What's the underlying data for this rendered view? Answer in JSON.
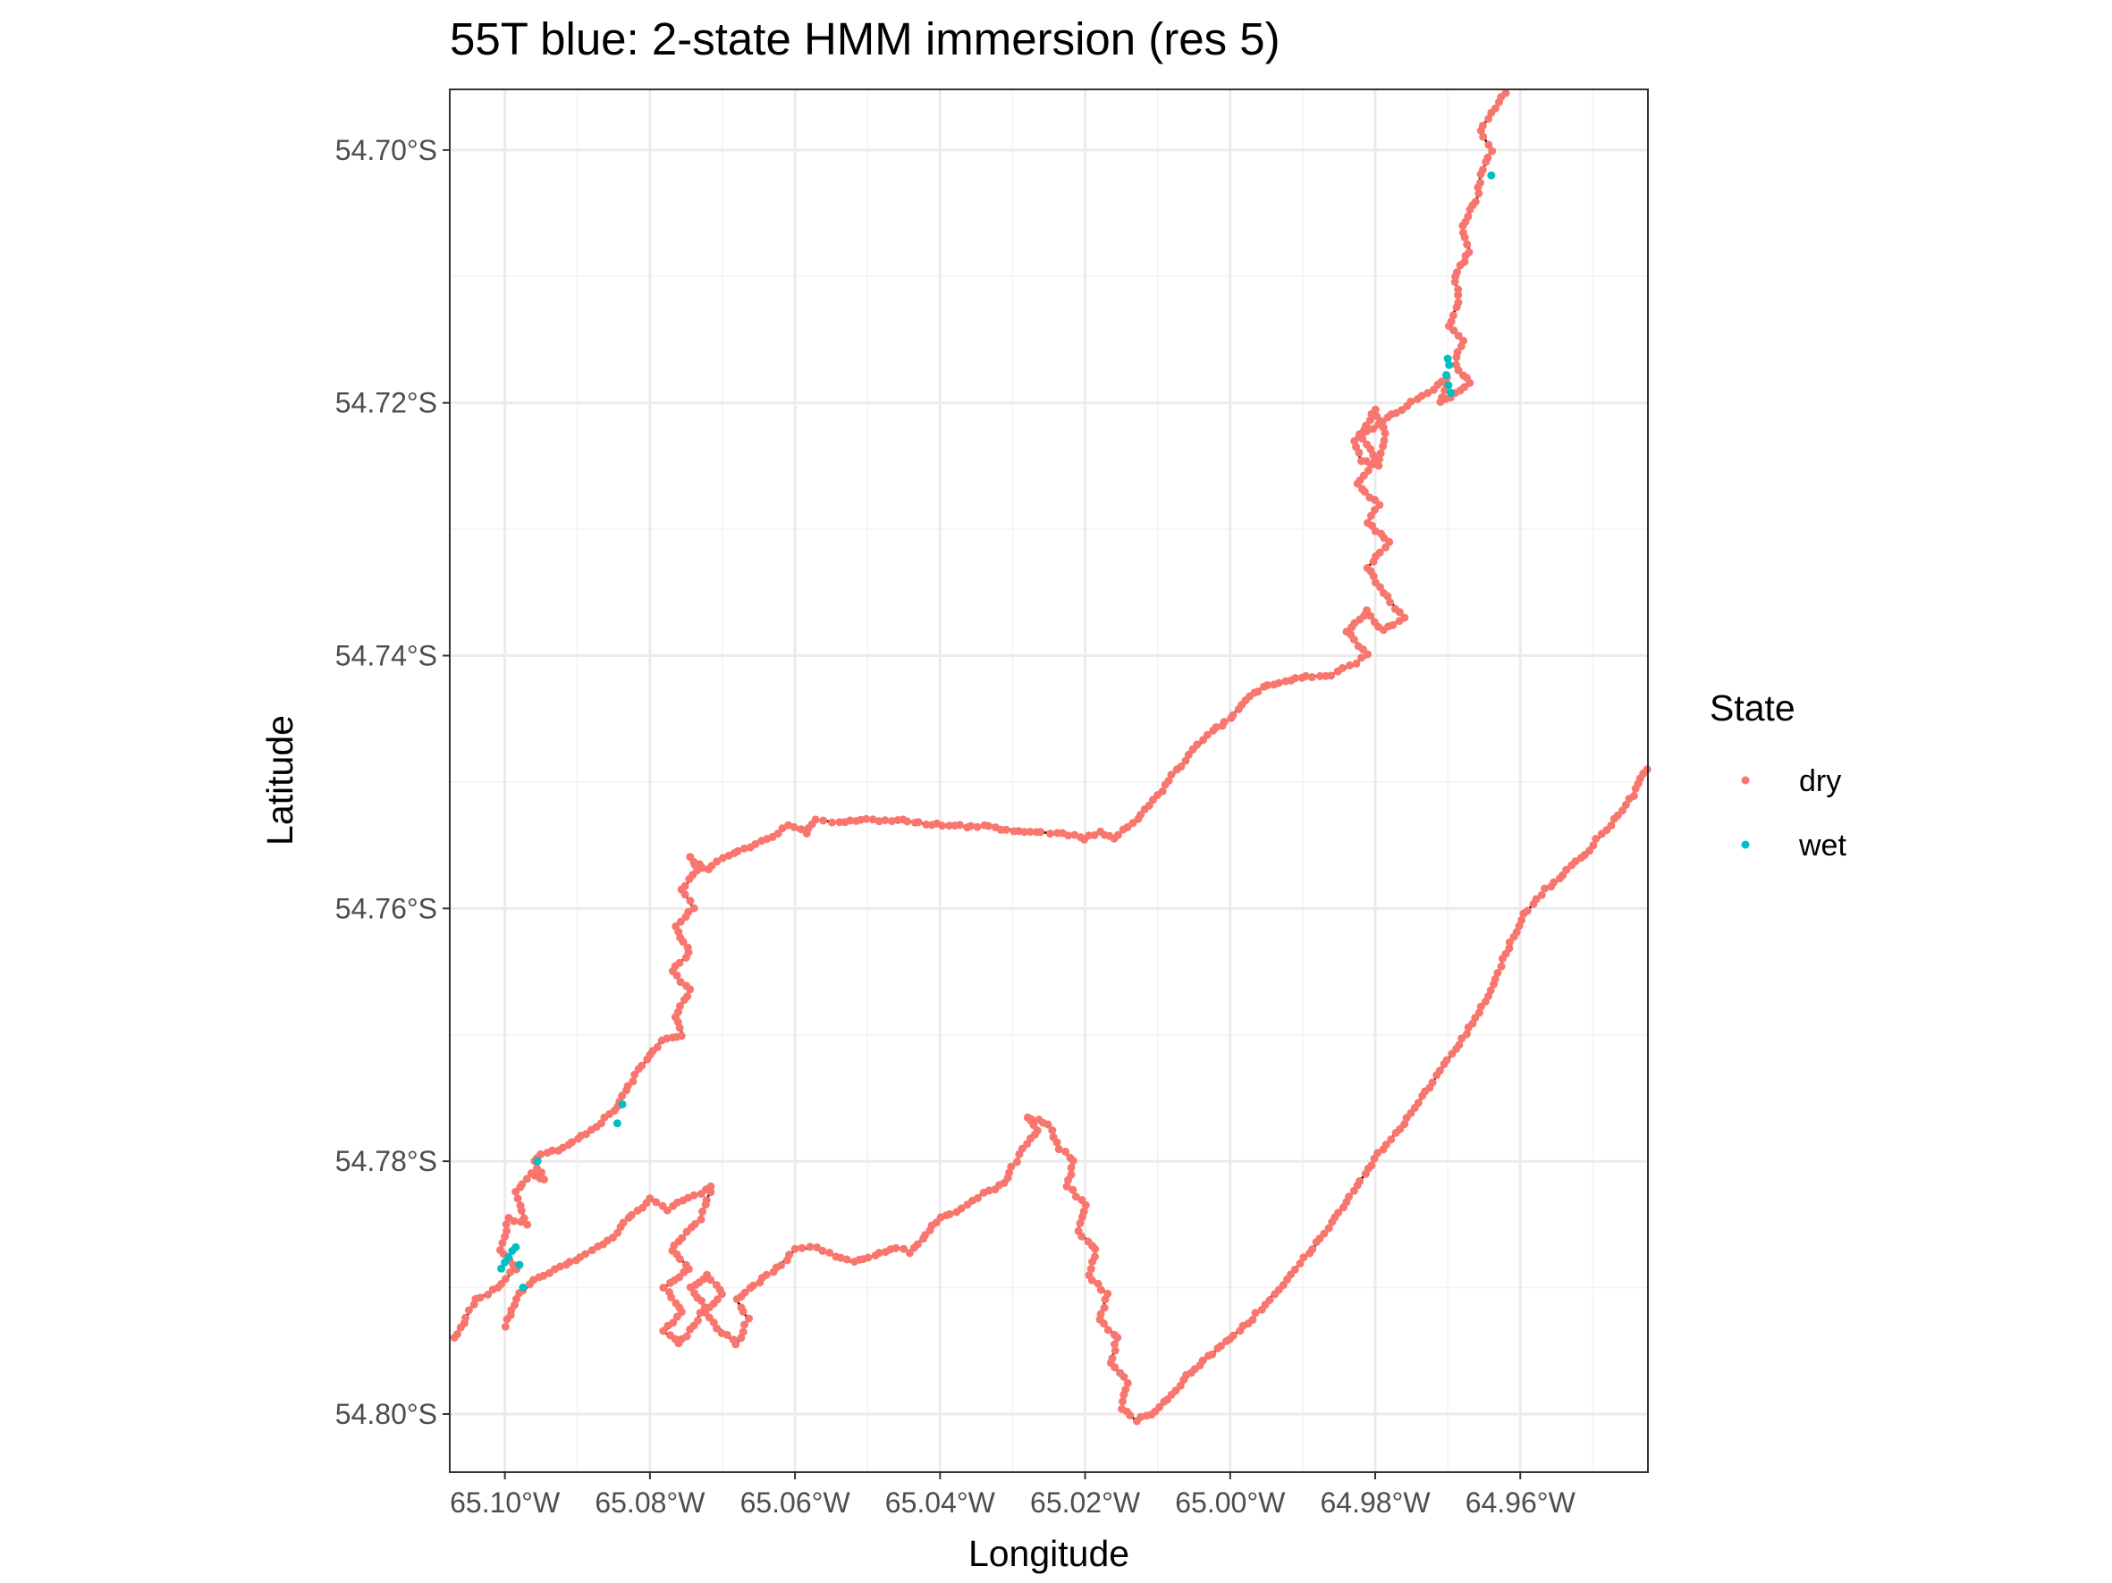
{
  "chart_data": {
    "type": "scatter",
    "title": "55T blue: 2-state HMM immersion (res 5)",
    "xlabel": "Longitude",
    "ylabel": "Latitude",
    "xlim": [
      -65.1076,
      -64.9424
    ],
    "ylim": [
      -54.8046,
      -54.6952
    ],
    "x_ticks": [
      -65.1,
      -65.08,
      -65.06,
      -65.04,
      -65.02,
      -65.0,
      -64.98,
      -64.96
    ],
    "x_tick_labels": [
      "65.10°W",
      "65.08°W",
      "65.06°W",
      "65.04°W",
      "65.02°W",
      "65.00°W",
      "64.98°W",
      "64.96°W"
    ],
    "y_ticks": [
      -54.7,
      -54.72,
      -54.74,
      -54.76,
      -54.78,
      -54.8
    ],
    "y_tick_labels": [
      "54.70°S",
      "54.72°S",
      "54.74°S",
      "54.76°S",
      "54.78°S",
      "54.80°S"
    ],
    "grid": true,
    "legend": {
      "title": "State",
      "placement": "right",
      "entries": [
        {
          "label": "dry",
          "color": "#F8766D"
        },
        {
          "label": "wet",
          "color": "#00BFC4"
        }
      ]
    },
    "track_color": "#000000",
    "series": [
      {
        "name": "dry",
        "color": "#F8766D",
        "segments": [
          [
            [
              -65.107,
              -54.794
            ],
            [
              -65.104,
              -54.791
            ],
            [
              -65.101,
              -54.79
            ],
            [
              -65.0985,
              -54.7885
            ],
            [
              -65.1005,
              -54.787
            ],
            [
              -65.0995,
              -54.7845
            ],
            [
              -65.097,
              -54.785
            ],
            [
              -65.0985,
              -54.7825
            ],
            [
              -65.0965,
              -54.781
            ],
            [
              -65.0945,
              -54.7815
            ],
            [
              -65.096,
              -54.78
            ],
            [
              -65.095,
              -54.7795
            ],
            [
              -65.092,
              -54.779
            ],
            [
              -65.088,
              -54.7775
            ],
            [
              -65.085,
              -54.776
            ],
            [
              -65.083,
              -54.774
            ],
            [
              -65.0805,
              -54.772
            ],
            [
              -65.0785,
              -54.7705
            ],
            [
              -65.0755,
              -54.77
            ],
            [
              -65.0765,
              -54.7685
            ],
            [
              -65.0745,
              -54.7665
            ],
            [
              -65.077,
              -54.765
            ],
            [
              -65.0745,
              -54.7635
            ],
            [
              -65.0765,
              -54.7615
            ],
            [
              -65.074,
              -54.76
            ],
            [
              -65.0755,
              -54.7585
            ],
            [
              -65.0735,
              -54.757
            ],
            [
              -65.0745,
              -54.756
            ],
            [
              -65.072,
              -54.757
            ],
            [
              -65.07,
              -54.756
            ],
            [
              -65.064,
              -54.7545
            ],
            [
              -65.061,
              -54.7535
            ],
            [
              -65.0585,
              -54.754
            ],
            [
              -65.057,
              -54.753
            ],
            [
              -65.054,
              -54.7532
            ],
            [
              -65.05,
              -54.753
            ],
            [
              -65.046,
              -54.753
            ],
            [
              -65.042,
              -54.7533
            ],
            [
              -65.038,
              -54.7535
            ],
            [
              -65.034,
              -54.7535
            ],
            [
              -65.03,
              -54.7538
            ],
            [
              -65.026,
              -54.754
            ],
            [
              -65.023,
              -54.754
            ],
            [
              -65.02,
              -54.7545
            ],
            [
              -65.018,
              -54.754
            ],
            [
              -65.016,
              -54.7545
            ],
            [
              -65.014,
              -54.7535
            ],
            [
              -65.0105,
              -54.7515
            ],
            [
              -65.008,
              -54.7495
            ],
            [
              -65.005,
              -54.7475
            ],
            [
              -65.0025,
              -54.746
            ],
            [
              -65.0,
              -54.745
            ],
            [
              -64.998,
              -54.7435
            ],
            [
              -64.9955,
              -54.7425
            ],
            [
              -64.9925,
              -54.742
            ],
            [
              -64.9895,
              -54.7417
            ],
            [
              -64.986,
              -54.7415
            ],
            [
              -64.9835,
              -54.7408
            ],
            [
              -64.981,
              -54.74
            ],
            [
              -64.984,
              -54.738
            ],
            [
              -64.981,
              -54.7365
            ],
            [
              -64.979,
              -54.738
            ],
            [
              -64.976,
              -54.737
            ],
            [
              -64.979,
              -54.735
            ],
            [
              -64.981,
              -54.733
            ],
            [
              -64.978,
              -54.731
            ],
            [
              -64.981,
              -54.7295
            ],
            [
              -64.9795,
              -54.728
            ],
            [
              -64.9825,
              -54.7265
            ],
            [
              -64.98,
              -54.7245
            ],
            [
              -64.982,
              -54.7225
            ],
            [
              -64.98,
              -54.7205
            ],
            [
              -64.9785,
              -54.7225
            ],
            [
              -64.9795,
              -54.725
            ],
            [
              -64.982,
              -54.7245
            ],
            [
              -64.983,
              -54.723
            ],
            [
              -64.979,
              -54.7215
            ],
            [
              -64.975,
              -54.72
            ],
            [
              -64.972,
              -54.719
            ],
            [
              -64.97,
              -54.718
            ],
            [
              -64.971,
              -54.72
            ],
            [
              -64.967,
              -54.7185
            ],
            [
              -64.969,
              -54.717
            ],
            [
              -64.968,
              -54.715
            ],
            [
              -64.97,
              -54.714
            ],
            [
              -64.9685,
              -54.712
            ],
            [
              -64.969,
              -54.71
            ],
            [
              -64.967,
              -54.708
            ],
            [
              -64.968,
              -54.706
            ],
            [
              -64.966,
              -54.704
            ],
            [
              -64.9655,
              -54.702
            ],
            [
              -64.964,
              -54.7
            ],
            [
              -64.9655,
              -54.6985
            ],
            [
              -64.964,
              -54.697
            ],
            [
              -64.962,
              -54.6955
            ]
          ],
          [
            [
              -65.1,
              -54.793
            ],
            [
              -65.098,
              -54.7905
            ],
            [
              -65.096,
              -54.7895
            ],
            [
              -65.093,
              -54.7885
            ],
            [
              -65.091,
              -54.788
            ],
            [
              -65.088,
              -54.787
            ],
            [
              -65.085,
              -54.786
            ],
            [
              -65.083,
              -54.7845
            ],
            [
              -65.08,
              -54.783
            ],
            [
              -65.0775,
              -54.7838
            ],
            [
              -65.0755,
              -54.783
            ],
            [
              -65.073,
              -54.7825
            ],
            [
              -65.0715,
              -54.782
            ],
            [
              -65.073,
              -54.7845
            ],
            [
              -65.0755,
              -54.786
            ],
            [
              -65.077,
              -54.787
            ],
            [
              -65.0745,
              -54.7885
            ],
            [
              -65.078,
              -54.79
            ],
            [
              -65.0755,
              -54.792
            ],
            [
              -65.078,
              -54.7935
            ],
            [
              -65.076,
              -54.7945
            ],
            [
              -65.074,
              -54.793
            ],
            [
              -65.0725,
              -54.7915
            ],
            [
              -65.0745,
              -54.79
            ],
            [
              -65.072,
              -54.789
            ],
            [
              -65.07,
              -54.7905
            ],
            [
              -65.0725,
              -54.792
            ],
            [
              -65.07,
              -54.7935
            ],
            [
              -65.068,
              -54.7945
            ],
            [
              -65.0665,
              -54.7925
            ],
            [
              -65.068,
              -54.791
            ],
            [
              -65.065,
              -54.7895
            ],
            [
              -65.0625,
              -54.7885
            ],
            [
              -65.06,
              -54.787
            ],
            [
              -65.057,
              -54.7868
            ],
            [
              -65.0545,
              -54.7875
            ],
            [
              -65.052,
              -54.788
            ],
            [
              -65.049,
              -54.7875
            ],
            [
              -65.046,
              -54.7868
            ],
            [
              -65.044,
              -54.7872
            ],
            [
              -65.042,
              -54.7858
            ],
            [
              -65.04,
              -54.7845
            ],
            [
              -65.037,
              -54.7838
            ],
            [
              -65.034,
              -54.7825
            ],
            [
              -65.031,
              -54.7818
            ],
            [
              -65.03,
              -54.7805
            ],
            [
              -65.0285,
              -54.779
            ],
            [
              -65.0265,
              -54.7775
            ],
            [
              -65.028,
              -54.7765
            ],
            [
              -65.025,
              -54.777
            ],
            [
              -65.0235,
              -54.779
            ],
            [
              -65.0215,
              -54.78
            ],
            [
              -65.0225,
              -54.782
            ],
            [
              -65.02,
              -54.7835
            ],
            [
              -65.021,
              -54.7855
            ],
            [
              -65.0185,
              -54.787
            ],
            [
              -65.0195,
              -54.789
            ],
            [
              -65.017,
              -54.7905
            ],
            [
              -65.018,
              -54.7925
            ],
            [
              -65.0155,
              -54.794
            ],
            [
              -65.0165,
              -54.796
            ],
            [
              -65.014,
              -54.7975
            ],
            [
              -65.015,
              -54.7995
            ],
            [
              -65.013,
              -54.8005
            ],
            [
              -65.011,
              -54.8
            ],
            [
              -65.008,
              -54.7985
            ],
            [
              -65.006,
              -54.797
            ],
            [
              -65.003,
              -54.7955
            ],
            [
              -65.0,
              -54.794
            ],
            [
              -64.997,
              -54.7925
            ],
            [
              -64.994,
              -54.7905
            ],
            [
              -64.991,
              -54.7885
            ],
            [
              -64.988,
              -54.7865
            ],
            [
              -64.985,
              -54.784
            ],
            [
              -64.982,
              -54.7815
            ],
            [
              -64.979,
              -54.779
            ],
            [
              -64.976,
              -54.777
            ],
            [
              -64.973,
              -54.7745
            ],
            [
              -64.97,
              -54.772
            ],
            [
              -64.967,
              -54.7695
            ],
            [
              -64.964,
              -54.7665
            ],
            [
              -64.962,
              -54.7635
            ],
            [
              -64.9595,
              -54.7605
            ],
            [
              -64.9565,
              -54.7585
            ],
            [
              -64.9535,
              -54.757
            ],
            [
              -64.95,
              -54.755
            ],
            [
              -64.947,
              -54.753
            ],
            [
              -64.9445,
              -54.751
            ],
            [
              -64.9425,
              -54.749
            ]
          ]
        ]
      },
      {
        "name": "wet",
        "color": "#00BFC4",
        "points": [
          [
            -65.1005,
            -54.7885
          ],
          [
            -65.1,
            -54.788
          ],
          [
            -65.0995,
            -54.7876
          ],
          [
            -65.099,
            -54.7871
          ],
          [
            -65.0985,
            -54.7868
          ],
          [
            -65.098,
            -54.7882
          ],
          [
            -65.0975,
            -54.79
          ],
          [
            -65.0955,
            -54.78
          ],
          [
            -65.0845,
            -54.777
          ],
          [
            -65.0838,
            -54.7755
          ],
          [
            -64.97,
            -54.7165
          ],
          [
            -64.9698,
            -54.717
          ],
          [
            -64.9702,
            -54.7178
          ],
          [
            -64.9699,
            -54.7186
          ],
          [
            -64.9696,
            -54.7192
          ],
          [
            -64.964,
            -54.702
          ]
        ]
      }
    ]
  }
}
